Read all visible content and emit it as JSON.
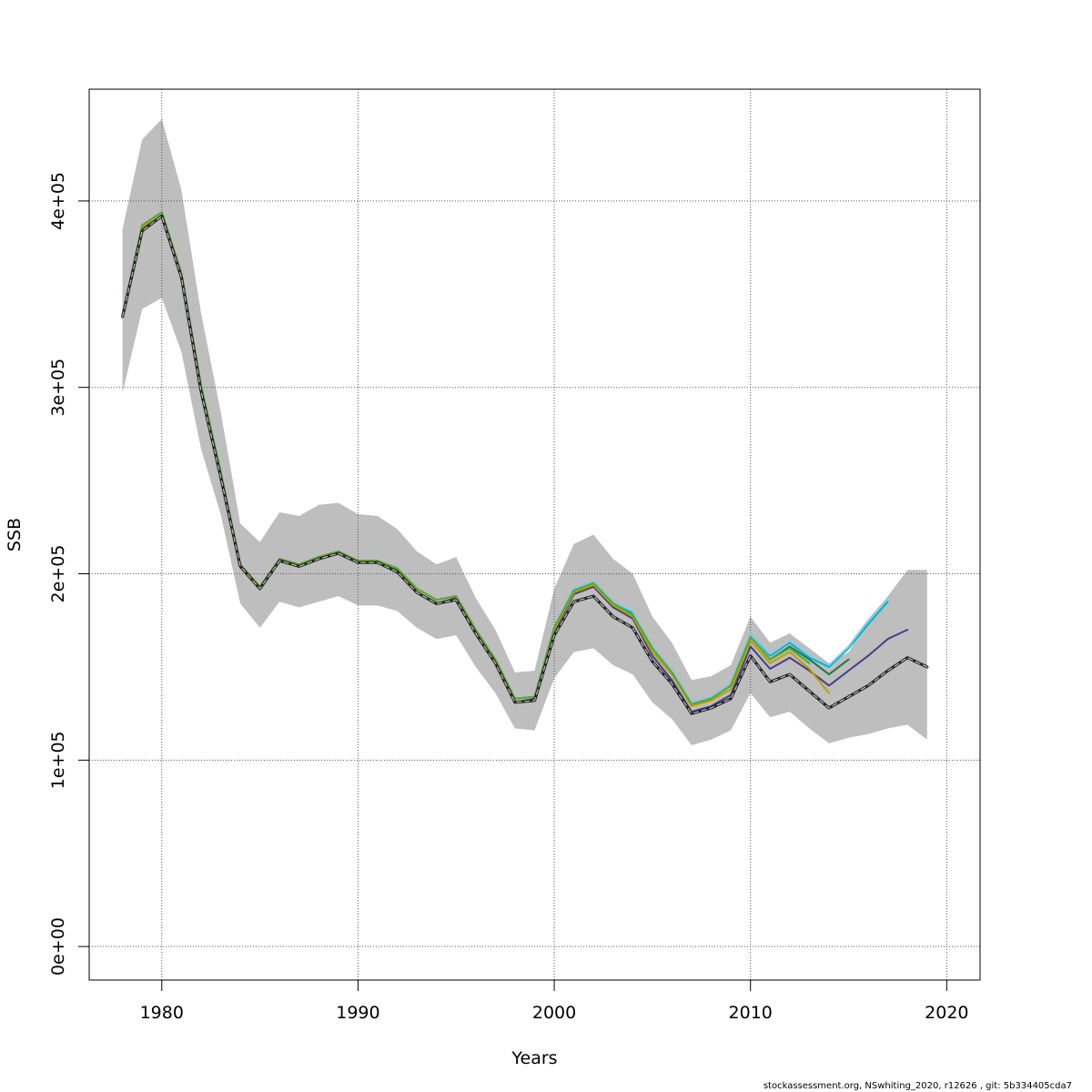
{
  "chart_data": {
    "type": "line",
    "xlabel": "Years",
    "ylabel": "SSB",
    "xlim": [
      1976.3,
      2021.7
    ],
    "ylim": [
      -18000,
      460000
    ],
    "x_ticks": [
      1980,
      1990,
      2000,
      2010,
      2020
    ],
    "x_tick_labels": [
      "1980",
      "1990",
      "2000",
      "2010",
      "2020"
    ],
    "y_ticks": [
      0,
      100000,
      200000,
      300000,
      400000
    ],
    "y_tick_labels": [
      "0e+00",
      "1e+05",
      "2e+05",
      "3e+05",
      "4e+05"
    ],
    "grid": true,
    "legend": "none",
    "confidence_band": {
      "color": "#bebebe",
      "x": [
        1978,
        1979,
        1980,
        1981,
        1982,
        1983,
        1984,
        1985,
        1986,
        1987,
        1988,
        1989,
        1990,
        1991,
        1992,
        1993,
        1994,
        1995,
        1996,
        1997,
        1998,
        1999,
        2000,
        2001,
        2002,
        2003,
        2004,
        2005,
        2006,
        2007,
        2008,
        2009,
        2010,
        2011,
        2012,
        2013,
        2014,
        2015,
        2016,
        2017,
        2018,
        2019
      ],
      "upper": [
        385000,
        433000,
        444000,
        406000,
        340000,
        287000,
        227000,
        217000,
        233000,
        231000,
        237000,
        238000,
        232000,
        231000,
        224000,
        212000,
        205000,
        209000,
        187000,
        170000,
        147000,
        148000,
        192000,
        216000,
        221000,
        208000,
        200000,
        177000,
        163000,
        143000,
        145000,
        151000,
        177000,
        163000,
        168000,
        160000,
        152000,
        158000,
        175000,
        188000,
        202000,
        202000
      ],
      "lower": [
        297000,
        342000,
        348000,
        319000,
        267000,
        232000,
        184000,
        171000,
        185000,
        182000,
        185000,
        188000,
        183000,
        183000,
        180000,
        171000,
        165000,
        167000,
        150000,
        136000,
        117000,
        116000,
        144000,
        158000,
        160000,
        151000,
        146000,
        131000,
        122000,
        108000,
        111000,
        116000,
        136000,
        123000,
        126000,
        117000,
        109000,
        112000,
        114000,
        117000,
        119000,
        111000
      ]
    },
    "series": [
      {
        "color": "#00b4c8",
        "width": 2.0,
        "dash": "",
        "x": [
          1978,
          1979,
          1980,
          1981,
          1982,
          1983,
          1984,
          1985,
          1986,
          1987,
          1988,
          1989,
          1990,
          1991,
          1992,
          1993,
          1994,
          1995,
          1996,
          1997,
          1998,
          1999,
          2000,
          2001,
          2002,
          2003,
          2004,
          2005,
          2006,
          2007,
          2008,
          2009,
          2010,
          2011,
          2012,
          2013,
          2014,
          2015,
          2016,
          2017
        ],
        "values": [
          339000,
          387000,
          394000,
          361000,
          301000,
          254000,
          205000,
          193000,
          208000,
          205000,
          209000,
          212000,
          207000,
          207000,
          203000,
          192000,
          186000,
          188000,
          170000,
          154000,
          133000,
          134000,
          171000,
          192000,
          196000,
          185000,
          179000,
          161000,
          148000,
          131000,
          134000,
          141000,
          168000,
          156000,
          163000,
          155000,
          150000,
          160000,
          173000,
          185000
        ]
      },
      {
        "color": "#87cee8",
        "width": 2.0,
        "dash": "",
        "x": [
          1978,
          1979,
          1980,
          1981,
          1982,
          1983,
          1984,
          1985,
          1986,
          1987,
          1988,
          1989,
          1990,
          1991,
          1992,
          1993,
          1994,
          1995,
          1996,
          1997,
          1998,
          1999,
          2000,
          2001,
          2002,
          2003,
          2004,
          2005,
          2006,
          2007,
          2008,
          2009,
          2010,
          2011,
          2012,
          2013,
          2014,
          2015,
          2016,
          2017
        ],
        "values": [
          339000,
          386000,
          393000,
          361000,
          300000,
          254000,
          205000,
          193000,
          208000,
          205000,
          209000,
          212000,
          207000,
          207000,
          203000,
          192000,
          186000,
          188000,
          170000,
          154000,
          133000,
          134000,
          171000,
          192000,
          196000,
          185000,
          180000,
          161000,
          148000,
          131000,
          134000,
          141000,
          168000,
          157000,
          164000,
          157000,
          151000,
          161000,
          175000,
          187000
        ]
      },
      {
        "color": "#483d8b",
        "width": 2.0,
        "dash": "",
        "x": [
          1978,
          1979,
          1980,
          1981,
          1982,
          1983,
          1984,
          1985,
          1986,
          1987,
          1988,
          1989,
          1990,
          1991,
          1992,
          1993,
          1994,
          1995,
          1996,
          1997,
          1998,
          1999,
          2000,
          2001,
          2002,
          2003,
          2004,
          2005,
          2006,
          2007,
          2008,
          2009,
          2010,
          2011,
          2012,
          2013,
          2014,
          2015,
          2016,
          2017,
          2018
        ],
        "values": [
          338000,
          385000,
          392000,
          360000,
          299000,
          253000,
          204000,
          192000,
          207000,
          204000,
          208000,
          211000,
          206000,
          206000,
          201000,
          190000,
          184000,
          187000,
          169000,
          153000,
          131000,
          133000,
          169000,
          189000,
          193000,
          182000,
          176000,
          156000,
          143000,
          126000,
          129000,
          135000,
          161000,
          149000,
          155000,
          148000,
          140000,
          148000,
          156000,
          165000,
          170000
        ]
      },
      {
        "color": "#1e7845",
        "width": 2.0,
        "dash": "",
        "x": [
          1978,
          1979,
          1980,
          1981,
          1982,
          1983,
          1984,
          1985,
          1986,
          1987,
          1988,
          1989,
          1990,
          1991,
          1992,
          1993,
          1994,
          1995,
          1996,
          1997,
          1998,
          1999,
          2000,
          2001,
          2002,
          2003,
          2004,
          2005,
          2006,
          2007,
          2008,
          2009,
          2010,
          2011,
          2012,
          2013,
          2014,
          2015
        ],
        "values": [
          339000,
          386000,
          394000,
          361000,
          301000,
          254000,
          205000,
          193000,
          208000,
          205000,
          209000,
          212000,
          207000,
          207000,
          202000,
          192000,
          186000,
          188000,
          170000,
          154000,
          133000,
          134000,
          171000,
          191000,
          195000,
          184000,
          178000,
          160000,
          147000,
          130000,
          133000,
          140000,
          166000,
          154000,
          161000,
          154000,
          146000,
          154000
        ]
      },
      {
        "color": "#b8a000",
        "width": 2.0,
        "dash": "",
        "x": [
          1978,
          1979,
          1980,
          1981,
          1982,
          1983,
          1984,
          1985,
          1986,
          1987,
          1988,
          1989,
          1990,
          1991,
          1992,
          1993,
          1994,
          1995,
          1996,
          1997,
          1998,
          1999,
          2000,
          2001,
          2002,
          2003,
          2004,
          2005,
          2006,
          2007,
          2008,
          2009,
          2010,
          2011,
          2012,
          2013,
          2014
        ],
        "values": [
          339000,
          386000,
          394000,
          361000,
          301000,
          254000,
          205000,
          193000,
          208000,
          205000,
          209000,
          212000,
          207000,
          207000,
          203000,
          192000,
          186000,
          188000,
          170000,
          154000,
          133000,
          134000,
          170000,
          190000,
          194000,
          183000,
          177000,
          158000,
          146000,
          129000,
          132000,
          138000,
          164000,
          152000,
          158000,
          149000,
          136000
        ]
      },
      {
        "color": "#5aaa2a",
        "width": 2.0,
        "dash": "",
        "x": [
          1978,
          1979,
          1980,
          1981,
          1982,
          1983,
          1984,
          1985,
          1986,
          1987,
          1988,
          1989,
          1990,
          1991,
          1992,
          1993,
          1994,
          1995,
          1996,
          1997,
          1998,
          1999,
          2000,
          2001,
          2002,
          2003,
          2004,
          2005,
          2006,
          2007,
          2008,
          2009,
          2010,
          2011,
          2012,
          2013
        ],
        "values": [
          339000,
          387000,
          394000,
          361000,
          301000,
          255000,
          205000,
          193000,
          208000,
          205000,
          209000,
          212000,
          207000,
          207000,
          203000,
          192000,
          186000,
          188000,
          170000,
          154000,
          133000,
          134000,
          171000,
          191000,
          195000,
          184000,
          178000,
          160000,
          147000,
          130000,
          133000,
          140000,
          166000,
          154000,
          160000,
          152000
        ]
      },
      {
        "color": "#222222",
        "width": 3.2,
        "dash": "",
        "x": [
          1978,
          1979,
          1980,
          1981,
          1982,
          1983,
          1984,
          1985,
          1986,
          1987,
          1988,
          1989,
          1990,
          1991,
          1992,
          1993,
          1994,
          1995,
          1996,
          1997,
          1998,
          1999,
          2000,
          2001,
          2002,
          2003,
          2004,
          2005,
          2006,
          2007,
          2008,
          2009,
          2010,
          2011,
          2012,
          2013,
          2014,
          2015,
          2016,
          2017,
          2018,
          2019
        ],
        "values": [
          338000,
          384000,
          392000,
          359000,
          298000,
          252000,
          204000,
          192000,
          207000,
          204000,
          208000,
          211000,
          206000,
          206000,
          201000,
          190000,
          184000,
          186000,
          168000,
          152000,
          131000,
          132000,
          167000,
          185000,
          188000,
          177000,
          171000,
          153000,
          141000,
          125000,
          128000,
          133000,
          156000,
          142000,
          146000,
          137000,
          128000,
          134000,
          140000,
          148000,
          155000,
          150000
        ]
      },
      {
        "color": "#bdbdbd",
        "width": 1.2,
        "dash": "5,4",
        "x": [
          1978,
          1979,
          1980,
          1981,
          1982,
          1983,
          1984,
          1985,
          1986,
          1987,
          1988,
          1989,
          1990,
          1991,
          1992,
          1993,
          1994,
          1995,
          1996,
          1997,
          1998,
          1999,
          2000,
          2001,
          2002,
          2003,
          2004,
          2005,
          2006,
          2007,
          2008,
          2009,
          2010,
          2011,
          2012,
          2013,
          2014,
          2015,
          2016,
          2017,
          2018,
          2019
        ],
        "values": [
          338000,
          384000,
          392000,
          359000,
          298000,
          252000,
          204000,
          192000,
          207000,
          204000,
          208000,
          211000,
          206000,
          206000,
          201000,
          190000,
          184000,
          186000,
          168000,
          152000,
          131000,
          132000,
          167000,
          185000,
          188000,
          177000,
          171000,
          153000,
          141000,
          125000,
          128000,
          133000,
          156000,
          142000,
          146000,
          137000,
          128000,
          134000,
          140000,
          148000,
          155000,
          150000
        ]
      }
    ]
  },
  "footer": {
    "text": "stockassessment.org, NSwhiting_2020, r12626 , git: 5b334405cda7"
  }
}
